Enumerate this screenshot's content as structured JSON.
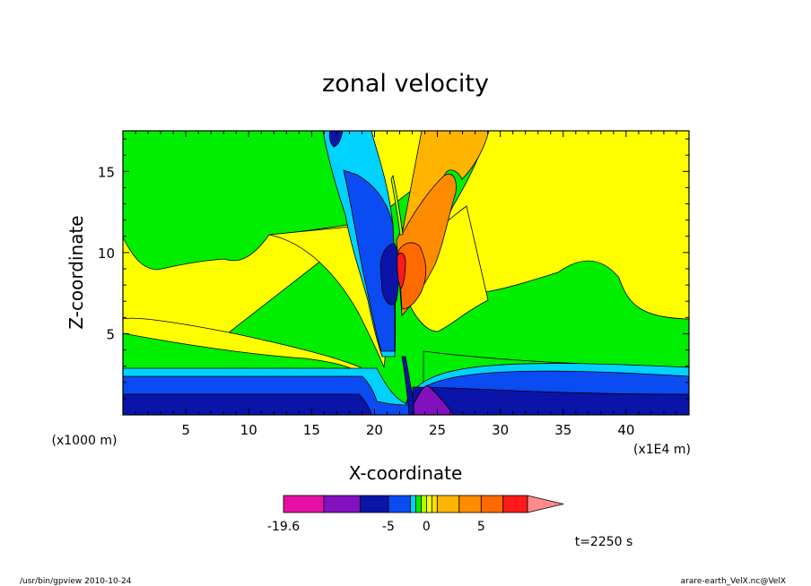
{
  "chart_data": {
    "type": "heatmap",
    "title": "zonal velocity",
    "xlabel": "X-coordinate",
    "ylabel": "Z-coordinate",
    "x_unit": "(x1E4 m)",
    "z_unit": "(x1000 m)",
    "xlim": [
      0,
      45
    ],
    "ylim": [
      0,
      17.5
    ],
    "x_ticks": [
      5,
      10,
      15,
      20,
      25,
      30,
      35,
      40
    ],
    "y_ticks": [
      5,
      10,
      15
    ],
    "time_label": "t=2250 s",
    "colorbar": {
      "labels": [
        "-19.6",
        "-5",
        "0",
        "5"
      ],
      "label_values": [
        -19.6,
        -5,
        0,
        5
      ],
      "levels": [
        -19.6,
        -15,
        -10,
        -5,
        -2,
        -1,
        -0.5,
        0,
        0.5,
        1,
        2,
        5,
        10,
        15
      ],
      "colors": [
        "#e60fa8",
        "#8210bf",
        "#0a14a8",
        "#0a4bf2",
        "#00d2ff",
        "#00ee00",
        "#b4ff00",
        "#ffff00",
        "#ffe000",
        "#ffb400",
        "#ff8c00",
        "#ff6a00",
        "#ff1a1a",
        "#ff8a8a"
      ],
      "extend": "max"
    }
  },
  "footer": {
    "left": "/usr/bin/gpview  2010-10-24",
    "right": "arare-earth_VelX.nc@VelX"
  }
}
